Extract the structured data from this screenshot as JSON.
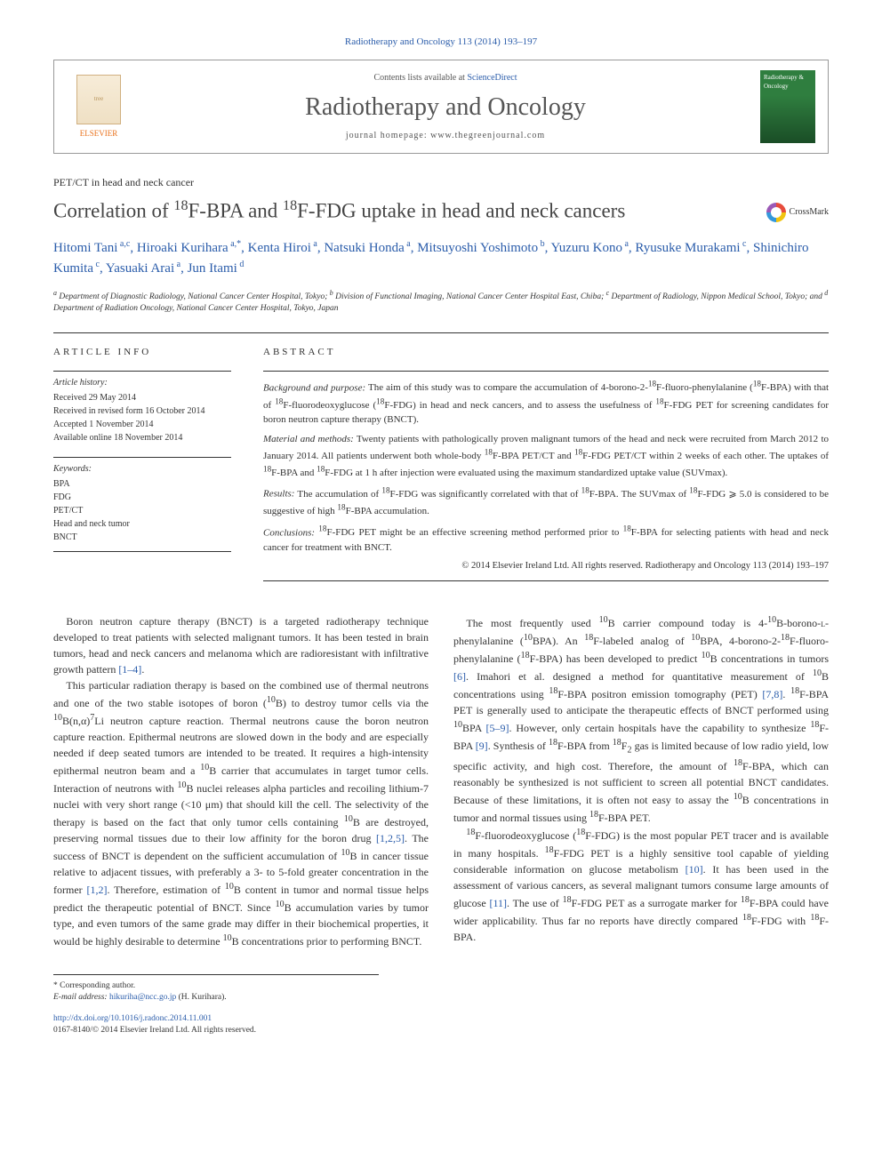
{
  "citation_top": "Radiotherapy and Oncology 113 (2014) 193–197",
  "header": {
    "contents_prefix": "Contents lists available at ",
    "contents_link": "ScienceDirect",
    "journal": "Radiotherapy and Oncology",
    "homepage_label": "journal homepage: ",
    "homepage": "www.thegreenjournal.com",
    "publisher_mark": "ELSEVIER",
    "cover_text": "Radiotherapy & Oncology"
  },
  "article_type": "PET/CT in head and neck cancer",
  "title_html": "Correlation of <sup class='fn'>18</sup>F-BPA and <sup class='fn'>18</sup>F-FDG uptake in head and neck cancers",
  "crossmark_label": "CrossMark",
  "authors_html": "Hitomi Tani<span class='sup'> a,c</span>, Hiroaki Kurihara<span class='sup'> a,*</span>, Kenta Hiroi<span class='sup'> a</span>, Natsuki Honda<span class='sup'> a</span>, Mitsuyoshi Yoshimoto<span class='sup'> b</span>, Yuzuru Kono<span class='sup'> a</span>, Ryusuke Murakami<span class='sup'> c</span>, Shinichiro Kumita<span class='sup'> c</span>, Yasuaki Arai<span class='sup'> a</span>, Jun Itami<span class='sup'> d</span>",
  "affiliations_html": "<sup>a</sup> Department of Diagnostic Radiology, National Cancer Center Hospital, Tokyo; <sup>b</sup> Division of Functional Imaging, National Cancer Center Hospital East, Chiba; <sup>c</sup> Department of Radiology, Nippon Medical School, Tokyo; and <sup>d</sup> Department of Radiation Oncology, National Cancer Center Hospital, Tokyo, Japan",
  "info_headings": {
    "left": "article info",
    "right": "abstract"
  },
  "history": {
    "label": "Article history:",
    "lines": [
      "Received 29 May 2014",
      "Received in revised form 16 October 2014",
      "Accepted 1 November 2014",
      "Available online 18 November 2014"
    ]
  },
  "keywords": {
    "label": "Keywords:",
    "items": [
      "BPA",
      "FDG",
      "PET/CT",
      "Head and neck tumor",
      "BNCT"
    ]
  },
  "abstract": {
    "bg_label": "Background and purpose:",
    "bg": " The aim of this study was to compare the accumulation of 4-borono-2-<sup>18</sup>F-fluoro-phenylalanine (<sup>18</sup>F-BPA) with that of <sup>18</sup>F-fluorodeoxyglucose (<sup>18</sup>F-FDG) in head and neck cancers, and to assess the usefulness of <sup>18</sup>F-FDG PET for screening candidates for boron neutron capture therapy (BNCT).",
    "mm_label": "Material and methods:",
    "mm": " Twenty patients with pathologically proven malignant tumors of the head and neck were recruited from March 2012 to January 2014. All patients underwent both whole-body <sup>18</sup>F-BPA PET/CT and <sup>18</sup>F-FDG PET/CT within 2 weeks of each other. The uptakes of <sup>18</sup>F-BPA and <sup>18</sup>F-FDG at 1 h after injection were evaluated using the maximum standardized uptake value (SUVmax).",
    "res_label": "Results:",
    "res": " The accumulation of <sup>18</sup>F-FDG was significantly correlated with that of <sup>18</sup>F-BPA. The SUVmax of <sup>18</sup>F-FDG ⩾ 5.0 is considered to be suggestive of high <sup>18</sup>F-BPA accumulation.",
    "con_label": "Conclusions:",
    "con": " <sup>18</sup>F-FDG PET might be an effective screening method performed prior to <sup>18</sup>F-BPA for selecting patients with head and neck cancer for treatment with BNCT.",
    "copyright": "© 2014 Elsevier Ireland Ltd. All rights reserved. Radiotherapy and Oncology 113 (2014) 193–197"
  },
  "body_paragraphs": [
    "Boron neutron capture therapy (BNCT) is a targeted radiotherapy technique developed to treat patients with selected malignant tumors. It has been tested in brain tumors, head and neck cancers and melanoma which are radioresistant with infiltrative growth pattern <span class='ref-link'>[1–4]</span>.",
    "This particular radiation therapy is based on the combined use of thermal neutrons and one of the two stable isotopes of boron (<sup>10</sup>B) to destroy tumor cells via the <sup>10</sup>B(n,α)<sup>7</sup>Li neutron capture reaction. Thermal neutrons cause the boron neutron capture reaction. Epithermal neutrons are slowed down in the body and are especially needed if deep seated tumors are intended to be treated. It requires a high-intensity epithermal neutron beam and a <sup>10</sup>B carrier that accumulates in target tumor cells. Interaction of neutrons with <sup>10</sup>B nuclei releases alpha particles and recoiling lithium-7 nuclei with very short range (&lt;10 μm) that should kill the cell. The selectivity of the therapy is based on the fact that only tumor cells containing <sup>10</sup>B are destroyed, preserving normal tissues due to their low affinity for the boron drug <span class='ref-link'>[1,2,5]</span>. The success of BNCT is dependent on the sufficient accumulation of <sup>10</sup>B in cancer tissue relative to adjacent tissues, with preferably a 3- to 5-fold greater concentration in the former <span class='ref-link'>[1,2]</span>. Therefore, estimation of <sup>10</sup>B content in tumor and normal tissue helps predict the therapeutic potential of BNCT. Since <sup>10</sup>B accumulation varies by tumor type, and even tumors of the same grade may differ in their biochemical properties, it would be highly desirable to determine <sup>10</sup>B concentrations prior to performing BNCT.",
    "The most frequently used <sup>10</sup>B carrier compound today is 4-<sup>10</sup>B-borono-<span style='font-variant:small-caps'>l</span>-phenylalanine (<sup>10</sup>BPA). An <sup>18</sup>F-labeled analog of <sup>10</sup>BPA, 4-borono-2-<sup>18</sup>F-fluoro-phenylalanine (<sup>18</sup>F-BPA) has been developed to predict <sup>10</sup>B concentrations in tumors <span class='ref-link'>[6]</span>. Imahori et al. designed a method for quantitative measurement of <sup>10</sup>B concentrations using <sup>18</sup>F-BPA positron emission tomography (PET) <span class='ref-link'>[7,8]</span>. <sup>18</sup>F-BPA PET is generally used to anticipate the therapeutic effects of BNCT performed using <sup>10</sup>BPA <span class='ref-link'>[5–9]</span>. However, only certain hospitals have the capability to synthesize <sup>18</sup>F-BPA <span class='ref-link'>[9]</span>. Synthesis of <sup>18</sup>F-BPA from <sup>18</sup>F<sub>2</sub> gas is limited because of low radio yield, low specific activity, and high cost. Therefore, the amount of <sup>18</sup>F-BPA, which can reasonably be synthesized is not sufficient to screen all potential BNCT candidates. Because of these limitations, it is often not easy to assay the <sup>10</sup>B concentrations in tumor and normal tissues using <sup>18</sup>F-BPA PET.",
    "<sup>18</sup>F-fluorodeoxyglucose (<sup>18</sup>F-FDG) is the most popular PET tracer and is available in many hospitals. <sup>18</sup>F-FDG PET is a highly sensitive tool capable of yielding considerable information on glucose metabolism <span class='ref-link'>[10]</span>. It has been used in the assessment of various cancers, as several malignant tumors consume large amounts of glucose <span class='ref-link'>[11]</span>. The use of <sup>18</sup>F-FDG PET as a surrogate marker for <sup>18</sup>F-BPA could have wider applicability. Thus far no reports have directly compared <sup>18</sup>F-FDG with <sup>18</sup>F-BPA."
  ],
  "footer": {
    "corr_label": "* Corresponding author.",
    "email_label": "E-mail address: ",
    "email": "hikuriha@ncc.go.jp",
    "email_who": " (H. Kurihara).",
    "doi": "http://dx.doi.org/10.1016/j.radonc.2014.11.001",
    "issn_line": "0167-8140/© 2014 Elsevier Ireland Ltd. All rights reserved."
  },
  "colors": {
    "link": "#2a5caa",
    "text": "#333333",
    "orange": "#e9711c"
  }
}
